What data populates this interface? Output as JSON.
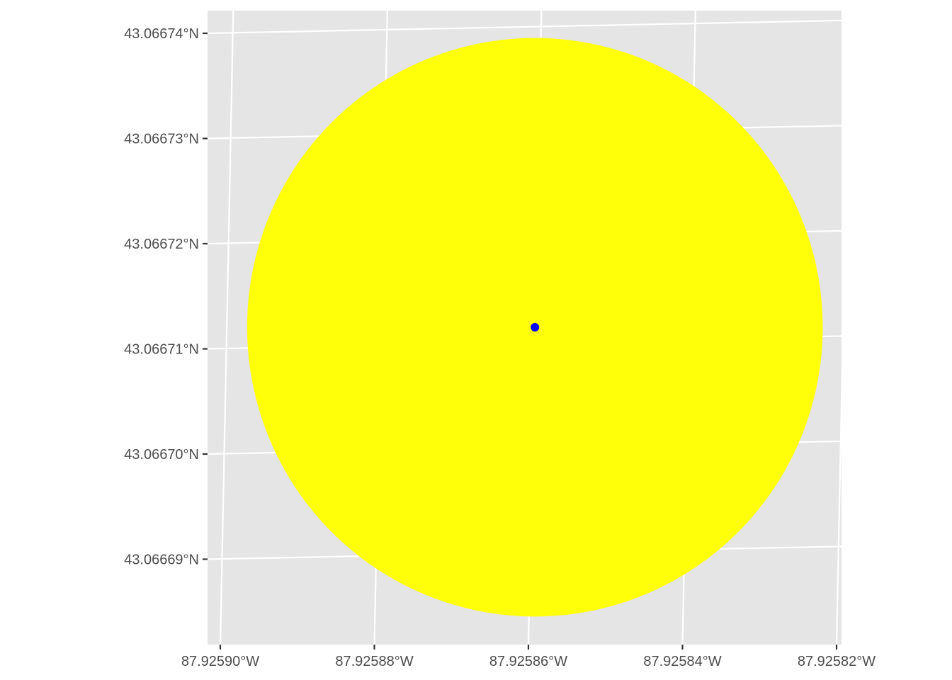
{
  "map": {
    "type": "map",
    "projection": "projected-lat-lon",
    "grid": true,
    "panel_background": "#E5E5E5",
    "grid_color": "#FFFFFF",
    "latitude_ticks": [
      {
        "value": 43.06674,
        "label": "43.06674°N"
      },
      {
        "value": 43.06673,
        "label": "43.06673°N"
      },
      {
        "value": 43.06672,
        "label": "43.06672°N"
      },
      {
        "value": 43.06671,
        "label": "43.06671°N"
      },
      {
        "value": 43.0667,
        "label": "43.06670°N"
      },
      {
        "value": 43.06669,
        "label": "43.06669°N"
      }
    ],
    "longitude_ticks": [
      {
        "value": -87.9259,
        "label": "87.92590°W"
      },
      {
        "value": -87.92588,
        "label": "87.92588°W"
      },
      {
        "value": -87.92586,
        "label": "87.92586°W"
      },
      {
        "value": -87.92584,
        "label": "87.92584°W"
      },
      {
        "value": -87.92582,
        "label": "87.92582°W"
      }
    ],
    "features": [
      {
        "kind": "buffer-polygon",
        "fill": "#FFFF0A",
        "center": {
          "lon": -87.92586,
          "lat": 43.066712
        },
        "radius_deg_lat": 2.75e-05
      },
      {
        "kind": "point",
        "fill": "#0000FF",
        "center": {
          "lon": -87.92586,
          "lat": 43.066712
        }
      }
    ]
  }
}
